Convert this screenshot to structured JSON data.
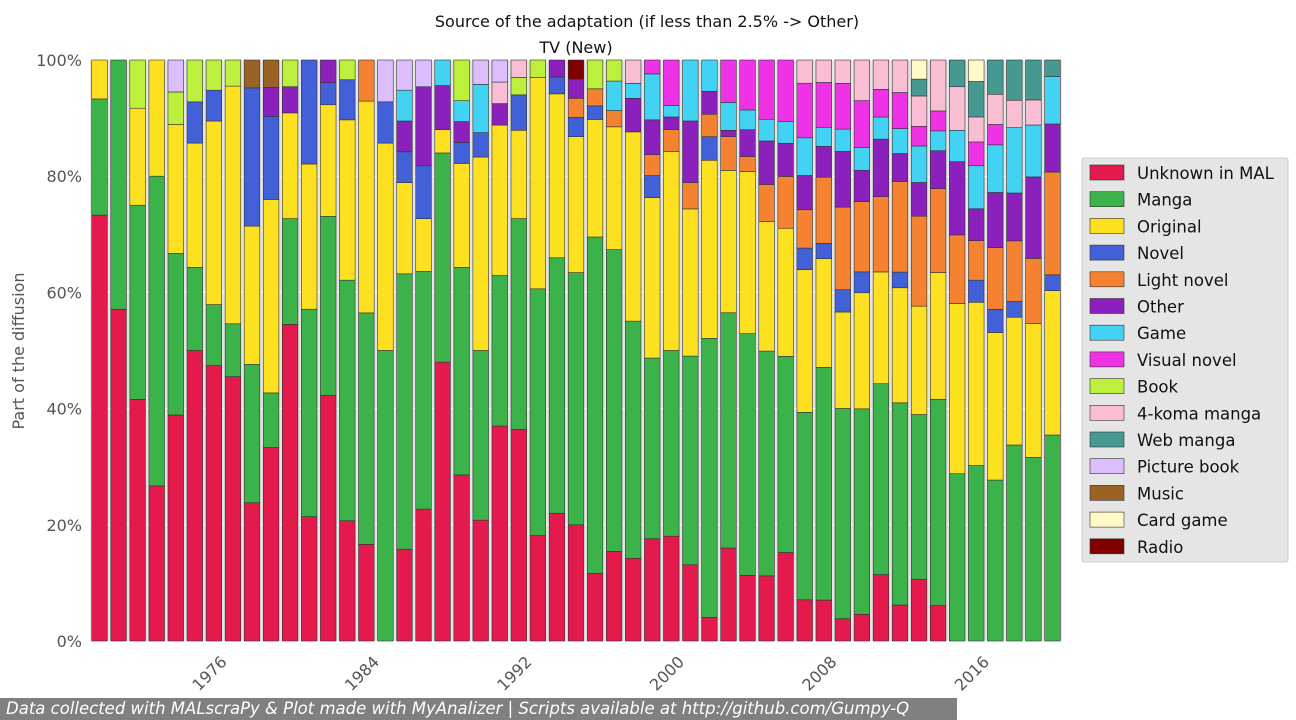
{
  "chart_data": {
    "type": "bar",
    "stacked": true,
    "normalized": true,
    "title": "Source of the adaptation (if less than 2.5% -> Other)",
    "subtitle": "TV (New)",
    "xlabel": "",
    "ylabel": "Part of the diffusion",
    "ylim": [
      0,
      100
    ],
    "yticks": [
      "0%",
      "20%",
      "40%",
      "60%",
      "80%",
      "100%"
    ],
    "xticks": [
      "1976",
      "1984",
      "1992",
      "2000",
      "2008",
      "2016"
    ],
    "xtick_years": [
      1976,
      1984,
      1992,
      2000,
      2008,
      2016
    ],
    "grid": true,
    "legend_position": "right",
    "x": [
      1970,
      1971,
      1972,
      1973,
      1974,
      1975,
      1976,
      1977,
      1978,
      1979,
      1980,
      1981,
      1982,
      1983,
      1984,
      1985,
      1986,
      1987,
      1988,
      1989,
      1990,
      1991,
      1992,
      1993,
      1994,
      1995,
      1996,
      1997,
      1998,
      1999,
      2000,
      2001,
      2002,
      2003,
      2004,
      2005,
      2006,
      2007,
      2008,
      2009,
      2010,
      2011,
      2012,
      2013,
      2014,
      2015,
      2016,
      2017,
      2018,
      2019,
      2020
    ],
    "series": [
      {
        "name": "Unknown in MAL",
        "color": "#e31a4b",
        "values": [
          73.3,
          57.1,
          41.6,
          26.7,
          38.9,
          50.0,
          47.4,
          45.5,
          23.8,
          33.3,
          54.5,
          21.4,
          42.3,
          20.7,
          16.7,
          0,
          15.8,
          22.7,
          48.0,
          28.6,
          20.8,
          37.0,
          36.4,
          17.6,
          21.9,
          17.6,
          11.5,
          14.9,
          13.8,
          17.6,
          18.4,
          13.0,
          4.0,
          16.0,
          11.3,
          11.1,
          15.2,
          7.1,
          7.3,
          4.0,
          4.6,
          12.0,
          6.2,
          11.0,
          5.7,
          0,
          0,
          0,
          0,
          0,
          0
        ]
      },
      {
        "name": "Manga",
        "color": "#3cb34a",
        "values": [
          20.0,
          42.9,
          33.4,
          53.3,
          27.8,
          14.3,
          10.5,
          9.1,
          23.8,
          9.4,
          18.2,
          35.7,
          30.8,
          41.4,
          40.0,
          50.0,
          47.4,
          40.9,
          36.0,
          35.7,
          29.2,
          25.9,
          36.3,
          41.2,
          43.8,
          38.2,
          57.2,
          50.1,
          39.6,
          31.1,
          32.6,
          35.6,
          47.3,
          40.5,
          41.6,
          38.3,
          33.7,
          32.3,
          41.5,
          37.7,
          35.4,
          34.5,
          34.8,
          29.3,
          33.2,
          28.8,
          30.2,
          27.7,
          33.6,
          32.2,
          35.1
        ]
      },
      {
        "name": "Original",
        "color": "#fde020",
        "values": [
          6.7,
          0,
          16.7,
          20.0,
          22.2,
          21.4,
          31.6,
          40.9,
          23.8,
          33.3,
          18.2,
          25.0,
          19.2,
          27.6,
          36.6,
          35.7,
          15.7,
          9.1,
          4.0,
          17.9,
          33.3,
          25.9,
          15.2,
          35.3,
          28.1,
          20.6,
          20.0,
          20.4,
          31.6,
          27.6,
          34.9,
          25.1,
          30.2,
          24.5,
          27.9,
          22.1,
          22.0,
          24.6,
          19.4,
          17.3,
          20.0,
          20.2,
          19.8,
          19.3,
          20.4,
          29.3,
          28.1,
          25.4,
          21.9,
          23.5,
          24.6
        ]
      },
      {
        "name": "Novel",
        "color": "#4260d8",
        "values": [
          0,
          0,
          0,
          0,
          0,
          7.1,
          5.3,
          0,
          23.8,
          14.3,
          0,
          17.9,
          3.8,
          6.9,
          0,
          7.1,
          5.3,
          9.1,
          0,
          3.6,
          4.2,
          0,
          6.1,
          0,
          2.9,
          2.9,
          2.3,
          0,
          0,
          3.8,
          0,
          0,
          4.0,
          0,
          0,
          0,
          0,
          3.7,
          2.7,
          4.0,
          3.6,
          0,
          2.7,
          0,
          0,
          0,
          3.8,
          4.0,
          2.7,
          0,
          2.7
        ]
      },
      {
        "name": "Light novel",
        "color": "#f58230",
        "values": [
          0,
          0,
          0,
          0,
          0,
          0,
          0,
          0,
          0,
          0,
          0,
          0,
          0,
          0,
          7.1,
          0,
          0,
          0,
          0,
          0,
          0,
          0,
          0,
          0,
          0,
          2.9,
          2.9,
          2.7,
          0,
          3.6,
          3.9,
          4.5,
          3.8,
          5.8,
          2.6,
          6.3,
          8.9,
          6.6,
          11.8,
          14.8,
          12.1,
          13.6,
          15.6,
          16.0,
          13.5,
          11.8,
          6.8,
          10.6,
          10.4,
          11.4,
          17.5
        ]
      },
      {
        "name": "Other",
        "color": "#8c20bd",
        "values": [
          0,
          0,
          0,
          0,
          0,
          0,
          0,
          0,
          0,
          5.0,
          4.5,
          0,
          3.9,
          0,
          0,
          0,
          5.3,
          13.6,
          7.6,
          3.6,
          0,
          3.7,
          0,
          0,
          2.9,
          2.9,
          0,
          0,
          5.6,
          6.0,
          2.2,
          10.5,
          3.9,
          1.1,
          4.6,
          7.4,
          5.7,
          5.9,
          5.5,
          10.0,
          5.4,
          10.4,
          4.8,
          6.0,
          6.1,
          12.6,
          5.5,
          9.5,
          8.2,
          14.3,
          8.2
        ]
      },
      {
        "name": "Game",
        "color": "#42d2f4",
        "values": [
          0,
          0,
          0,
          0,
          0,
          0,
          0,
          0,
          0,
          0,
          0,
          0,
          0,
          0,
          0,
          0,
          5.3,
          0,
          4.4,
          3.6,
          8.3,
          0,
          0,
          0,
          0,
          0,
          0,
          4.9,
          2.5,
          7.9,
          2.0,
          10.4,
          5.3,
          4.8,
          3.4,
          3.7,
          3.7,
          6.5,
          3.4,
          4.0,
          3.9,
          4.0,
          4.3,
          6.5,
          3.2,
          5.4,
          7.4,
          8.2,
          11.2,
          9.1,
          8.1
        ]
      },
      {
        "name": "Visual novel",
        "color": "#f032e6",
        "values": [
          0,
          0,
          0,
          0,
          0,
          0,
          0,
          0,
          0,
          0,
          0,
          0,
          0,
          0,
          0,
          0,
          0,
          0,
          0,
          0,
          0,
          0,
          0,
          0,
          0,
          0,
          0,
          0,
          0,
          2.4,
          8.0,
          0,
          0,
          7.3,
          8.6,
          10.1,
          10.6,
          9.4,
          8.0,
          8.2,
          8.1,
          5.0,
          6.2,
          3.5,
          3.2,
          0,
          4.1,
          3.5,
          0,
          0,
          0
        ]
      },
      {
        "name": "Book",
        "color": "#bcf03c",
        "values": [
          0,
          0,
          8.3,
          0,
          5.6,
          7.2,
          5.2,
          4.5,
          0,
          0,
          4.6,
          0,
          0,
          3.4,
          0,
          0,
          0,
          0,
          0,
          7.0,
          0,
          0,
          3.0,
          2.9,
          0,
          0,
          4.9,
          3.5,
          0,
          0,
          0,
          0,
          0,
          0,
          0,
          0,
          0,
          0,
          0,
          0,
          0,
          0,
          0,
          0,
          0,
          0,
          0,
          0,
          0,
          0,
          0
        ]
      },
      {
        "name": "4-koma manga",
        "color": "#fabed4",
        "values": [
          0,
          0,
          0,
          0,
          0,
          0,
          0,
          0,
          0,
          0,
          0,
          0,
          0,
          0,
          0,
          0,
          0,
          0,
          0,
          0,
          0,
          3.7,
          3.0,
          0,
          0,
          0,
          0,
          0,
          3.9,
          0,
          0,
          0,
          0,
          0,
          0,
          0,
          0,
          4.0,
          4.0,
          4.2,
          7.0,
          5.3,
          5.6,
          5.4,
          8.2,
          7.5,
          4.3,
          5.2,
          4.7,
          4.4,
          0
        ]
      },
      {
        "name": "Web manga",
        "color": "#469990",
        "values": [
          0,
          0,
          0,
          0,
          0,
          0,
          0,
          0,
          0,
          0,
          0,
          0,
          0,
          0,
          0,
          0,
          0,
          0,
          0,
          0,
          0,
          0,
          0,
          0,
          0,
          0,
          0,
          0,
          0,
          0,
          0,
          0,
          0,
          0,
          0,
          0,
          0,
          0,
          0,
          0,
          0,
          0,
          0,
          3.0,
          0,
          4.6,
          6.1,
          5.9,
          6.9,
          7.0,
          2.8
        ]
      },
      {
        "name": "Picture book",
        "color": "#dcbeff",
        "values": [
          0,
          0,
          0,
          0,
          5.5,
          0,
          0,
          0,
          0,
          0,
          0,
          0,
          0,
          0,
          0,
          7.2,
          5.2,
          4.6,
          0,
          0,
          4.2,
          3.8,
          0,
          0,
          0,
          0,
          0,
          0,
          0,
          0,
          0,
          0,
          0,
          0,
          0,
          0,
          0,
          0,
          0,
          0,
          0,
          0,
          0,
          0,
          0,
          0,
          0,
          0,
          0,
          0,
          0
        ]
      },
      {
        "name": "Music",
        "color": "#9a6324",
        "values": [
          0,
          0,
          0,
          0,
          0,
          0,
          0,
          0,
          4.8,
          4.7,
          0,
          0,
          0,
          0,
          0,
          0,
          0,
          0,
          0,
          0,
          0,
          0,
          0,
          0,
          0,
          0,
          0,
          0,
          0,
          0,
          0,
          0,
          0,
          0,
          0,
          0,
          0,
          0,
          0,
          0,
          0,
          0,
          0,
          0,
          0,
          0,
          0,
          0,
          0,
          0,
          0
        ]
      },
      {
        "name": "Card game",
        "color": "#fffac8",
        "values": [
          0,
          0,
          0,
          0,
          0,
          0,
          0,
          0,
          0,
          0,
          0,
          0,
          0,
          0,
          0,
          0,
          0,
          0,
          0,
          0,
          0,
          0,
          0,
          0,
          0,
          0,
          0,
          0,
          0,
          0,
          0,
          0,
          0,
          0,
          0,
          0,
          0,
          0,
          0,
          0,
          0,
          0,
          0,
          3.4,
          0,
          0,
          3.7,
          0,
          0,
          0,
          0
        ]
      },
      {
        "name": "Radio",
        "color": "#800000",
        "values": [
          0,
          0,
          0,
          0,
          0,
          0,
          0,
          0,
          0,
          0,
          0,
          0,
          0,
          0,
          0,
          0,
          0,
          0,
          0,
          0,
          0,
          0,
          0,
          0,
          0,
          2.9,
          0,
          0,
          0,
          0,
          0,
          0,
          0,
          0,
          0,
          0,
          0,
          0,
          0,
          0,
          0,
          0,
          0,
          0,
          0,
          0,
          0,
          0,
          0,
          0,
          0
        ]
      }
    ]
  },
  "footer": {
    "text": "Data collected with MALscraPy & Plot made with MyAnalizer | Scripts available at http://github.com/Gumpy-Q"
  }
}
